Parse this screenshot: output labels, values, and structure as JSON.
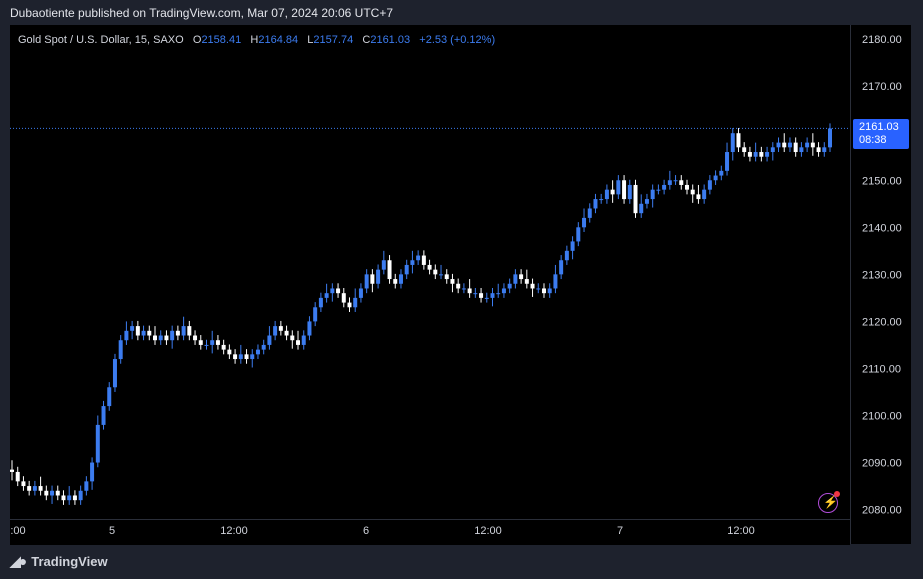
{
  "header": {
    "published": "Dubaotiente published on TradingView.com, Mar 07, 2024 20:06 UTC+7"
  },
  "legend": {
    "symbol": "Gold Spot / U.S. Dollar, 15, SAXO",
    "o_label": "O",
    "o": "2158.41",
    "h_label": "H",
    "h": "2164.84",
    "l_label": "L",
    "l": "2157.74",
    "c_label": "C",
    "c": "2161.03",
    "change": "+2.53 (+0.12%)"
  },
  "price_label": {
    "price": "2161.03",
    "timer": "08:38"
  },
  "footer": {
    "brand": "TradingView"
  },
  "colors": {
    "up": "#3c7cf0",
    "down": "#ffffff",
    "background": "#000000",
    "frame": "#1e222d"
  },
  "chart_data": {
    "type": "line",
    "ylim": [
      2078,
      2183
    ],
    "yticks": [
      "2080.00",
      "2090.00",
      "2100.00",
      "2110.00",
      "2120.00",
      "2130.00",
      "2140.00",
      "2150.00",
      "2160.00",
      "2170.00",
      "2180.00"
    ],
    "xticks": [
      ":00",
      "5",
      "12:00",
      "6",
      "12:00",
      "7",
      "12:00"
    ],
    "last_price": 2161.03,
    "close": [
      2088,
      2086,
      2085,
      2084,
      2085,
      2084,
      2083,
      2084,
      2083,
      2082,
      2083,
      2082,
      2084,
      2086,
      2090,
      2098,
      2102,
      2106,
      2112,
      2116,
      2118,
      2119,
      2117,
      2118,
      2117,
      2116,
      2117,
      2116,
      2118,
      2117,
      2119,
      2117,
      2116,
      2115,
      2115,
      2116,
      2115,
      2114,
      2113,
      2112,
      2113,
      2112,
      2113,
      2114,
      2115,
      2117,
      2119,
      2118,
      2117,
      2116,
      2115,
      2117,
      2120,
      2123,
      2125,
      2126,
      2127,
      2126,
      2124,
      2123,
      2125,
      2127,
      2130,
      2128,
      2131,
      2133,
      2129,
      2128,
      2130,
      2132,
      2133,
      2134,
      2132,
      2131,
      2130,
      2130,
      2129,
      2128,
      2127,
      2127,
      2126,
      2126,
      2125,
      2125,
      2126,
      2126,
      2127,
      2128,
      2130,
      2129,
      2128,
      2127,
      2127,
      2126,
      2127,
      2130,
      2133,
      2135,
      2137,
      2140,
      2142,
      2144,
      2146,
      2146,
      2148,
      2147,
      2150,
      2146,
      2149,
      2143,
      2145,
      2146,
      2148,
      2148,
      2149,
      2150,
      2150,
      2149,
      2148,
      2147,
      2146,
      2148,
      2150,
      2151,
      2152,
      2156,
      2160,
      2157,
      2156,
      2155,
      2156,
      2155,
      2156,
      2157,
      2158,
      2157,
      2158,
      2156,
      2157,
      2158,
      2157,
      2156,
      2157,
      2161
    ]
  }
}
